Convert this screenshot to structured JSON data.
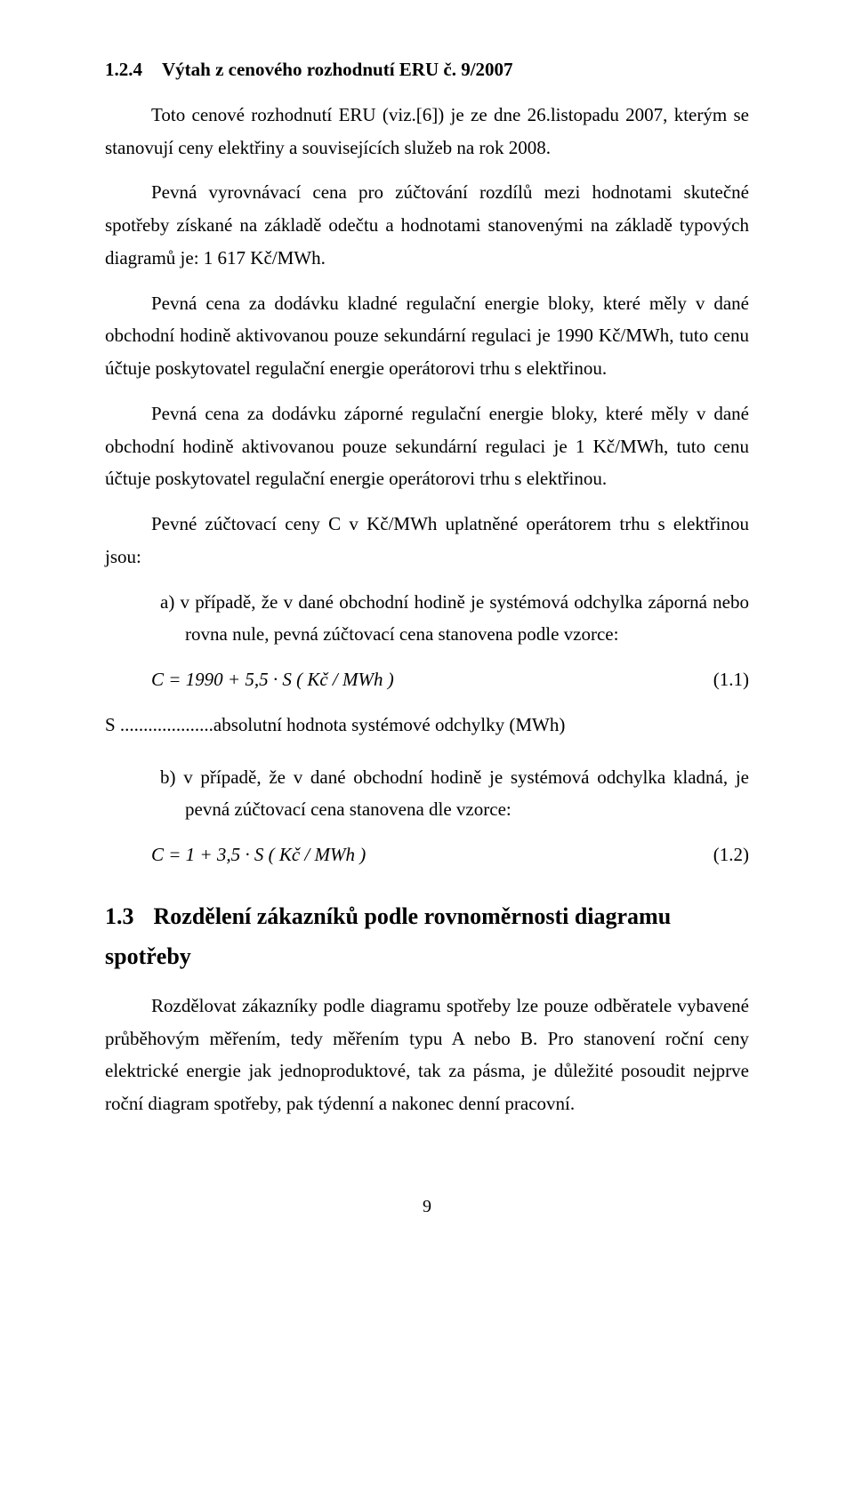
{
  "h1": {
    "num": "1.2.4",
    "text": "Výtah z cenového rozhodnutí ERU č. 9/2007"
  },
  "p1": "Toto cenové rozhodnutí ERU (viz.[6]) je ze dne 26.listopadu 2007, kterým se stanovují ceny elektřiny a souvisejících služeb na rok 2008.",
  "p2": "Pevná vyrovnávací cena pro zúčtování rozdílů mezi hodnotami skutečné spotřeby získané na základě odečtu a hodnotami stanovenými na základě typových diagramů je: 1 617 Kč/MWh.",
  "p3": "Pevná cena za dodávku kladné regulační energie bloky, které měly v dané obchodní hodině aktivovanou pouze sekundární regulaci je 1990 Kč/MWh, tuto cenu účtuje poskytovatel regulační energie operátorovi trhu s elektřinou.",
  "p4": "Pevná cena za dodávku záporné regulační energie bloky, které měly v dané obchodní hodině aktivovanou pouze sekundární regulaci je 1 Kč/MWh, tuto cenu účtuje poskytovatel regulační energie operátorovi trhu s elektřinou.",
  "p5": "Pevné zúčtovací ceny C v Kč/MWh uplatněné operátorem trhu s elektřinou jsou:",
  "li_a": "a)  v případě, že v dané obchodní hodině je systémová odchylka záporná nebo rovna nule, pevná zúčtovací cena stanovena podle vzorce:",
  "formula1": "C = 1990 + 5,5 · S     ( Kč / MWh )",
  "eq1": "(1.1)",
  "def_s": "S ....................absolutní hodnota systémové odchylky (MWh)",
  "li_b": "b)  v případě, že v dané obchodní hodině je systémová odchylka kladná, je pevná zúčtovací cena stanovena dle vzorce:",
  "formula2": "C = 1 + 3,5 · S     ( Kč / MWh )",
  "eq2": "(1.2)",
  "h2": {
    "num": "1.3",
    "text": "Rozdělení zákazníků podle rovnoměrnosti diagramu spotřeby"
  },
  "p6": "Rozdělovat zákazníky podle diagramu spotřeby lze pouze odběratele vybavené průběhovým měřením, tedy měřením typu A nebo B. Pro stanovení roční ceny elektrické energie jak jednoproduktové, tak za pásma, je důležité posoudit nejprve roční diagram spotřeby, pak týdenní a nakonec denní pracovní.",
  "pagenum": "9"
}
